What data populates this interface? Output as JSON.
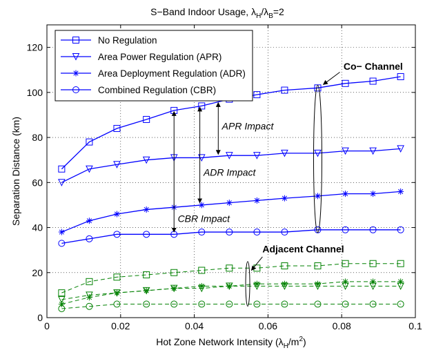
{
  "chart_data": {
    "type": "line",
    "title": "S−Band Indoor Usage, λ",
    "title_sub1": "H",
    "title_mid": "/λ",
    "title_sub2": "B",
    "title_tail": "=2",
    "xlabel": "Hot Zone Network Intensity (λ",
    "xlabel_sub": "H",
    "xlabel_tail": "/m",
    "xlabel_sup": "2",
    "xlabel_end": ")",
    "ylabel": "Separation Distance (km)",
    "xlim": [
      0,
      0.1
    ],
    "ylim": [
      0,
      130
    ],
    "xticks": [
      0,
      0.02,
      0.04,
      0.06,
      0.08,
      0.1
    ],
    "xtick_labels": [
      "0",
      "0.02",
      "0.04",
      "0.06",
      "0.08",
      "0.1"
    ],
    "yticks": [
      0,
      20,
      40,
      60,
      80,
      100,
      120
    ],
    "ytick_labels": [
      "0",
      "20",
      "40",
      "60",
      "80",
      "100",
      "120"
    ],
    "grid": true,
    "legend_position": "top-left",
    "x": [
      0.004,
      0.0115,
      0.019,
      0.027,
      0.0345,
      0.042,
      0.0495,
      0.057,
      0.0645,
      0.0735,
      0.081,
      0.0885,
      0.096
    ],
    "series": [
      {
        "name": "No Regulation",
        "group": "co",
        "marker": "square",
        "color": "#0000ff",
        "line": "solid",
        "values": [
          66,
          78,
          84,
          88,
          92,
          94,
          97,
          99,
          101,
          102,
          104,
          105,
          107
        ]
      },
      {
        "name": "Area Power Regulation (APR)",
        "group": "co",
        "marker": "triangle-down",
        "color": "#0000ff",
        "line": "solid",
        "values": [
          60,
          66,
          68,
          70,
          71,
          71,
          72,
          72,
          73,
          73,
          74,
          74,
          75
        ]
      },
      {
        "name": "Area Deployment Regulation (ADR)",
        "group": "co",
        "marker": "star",
        "color": "#0000ff",
        "line": "solid",
        "values": [
          38,
          43,
          46,
          48,
          49,
          50,
          51,
          52,
          53,
          54,
          55,
          55,
          56
        ]
      },
      {
        "name": "Combined Regulation (CBR)",
        "group": "co",
        "marker": "circle",
        "color": "#0000ff",
        "line": "solid",
        "values": [
          33,
          35,
          37,
          37,
          37,
          38,
          38,
          38,
          38,
          39,
          39,
          39,
          39
        ]
      },
      {
        "group": "adjacent",
        "marker": "square",
        "color": "#008000",
        "line": "dashed",
        "values": [
          11,
          16,
          18,
          19,
          20,
          21,
          22,
          22,
          23,
          23,
          24,
          24,
          24
        ]
      },
      {
        "group": "adjacent",
        "marker": "triangle-down",
        "color": "#008000",
        "line": "dashed",
        "values": [
          8,
          10,
          11,
          12,
          13,
          13,
          14,
          14,
          14,
          14,
          14,
          14,
          14
        ]
      },
      {
        "group": "adjacent",
        "marker": "star",
        "color": "#008000",
        "line": "dashed",
        "values": [
          6,
          9,
          11,
          12,
          13,
          14,
          14,
          15,
          15,
          15,
          16,
          16,
          16
        ]
      },
      {
        "group": "adjacent",
        "marker": "circle",
        "color": "#008000",
        "line": "dashed",
        "values": [
          4,
          5,
          6,
          6,
          6,
          6,
          6,
          6,
          6,
          6,
          6,
          6,
          6
        ]
      }
    ],
    "annotations": {
      "co_channel": "Co− Channel",
      "adjacent_channel": "Adjacent Channel",
      "apr_impact": "APR Impact",
      "adr_impact": "ADR Impact",
      "cbr_impact": "CBR Impact"
    }
  }
}
